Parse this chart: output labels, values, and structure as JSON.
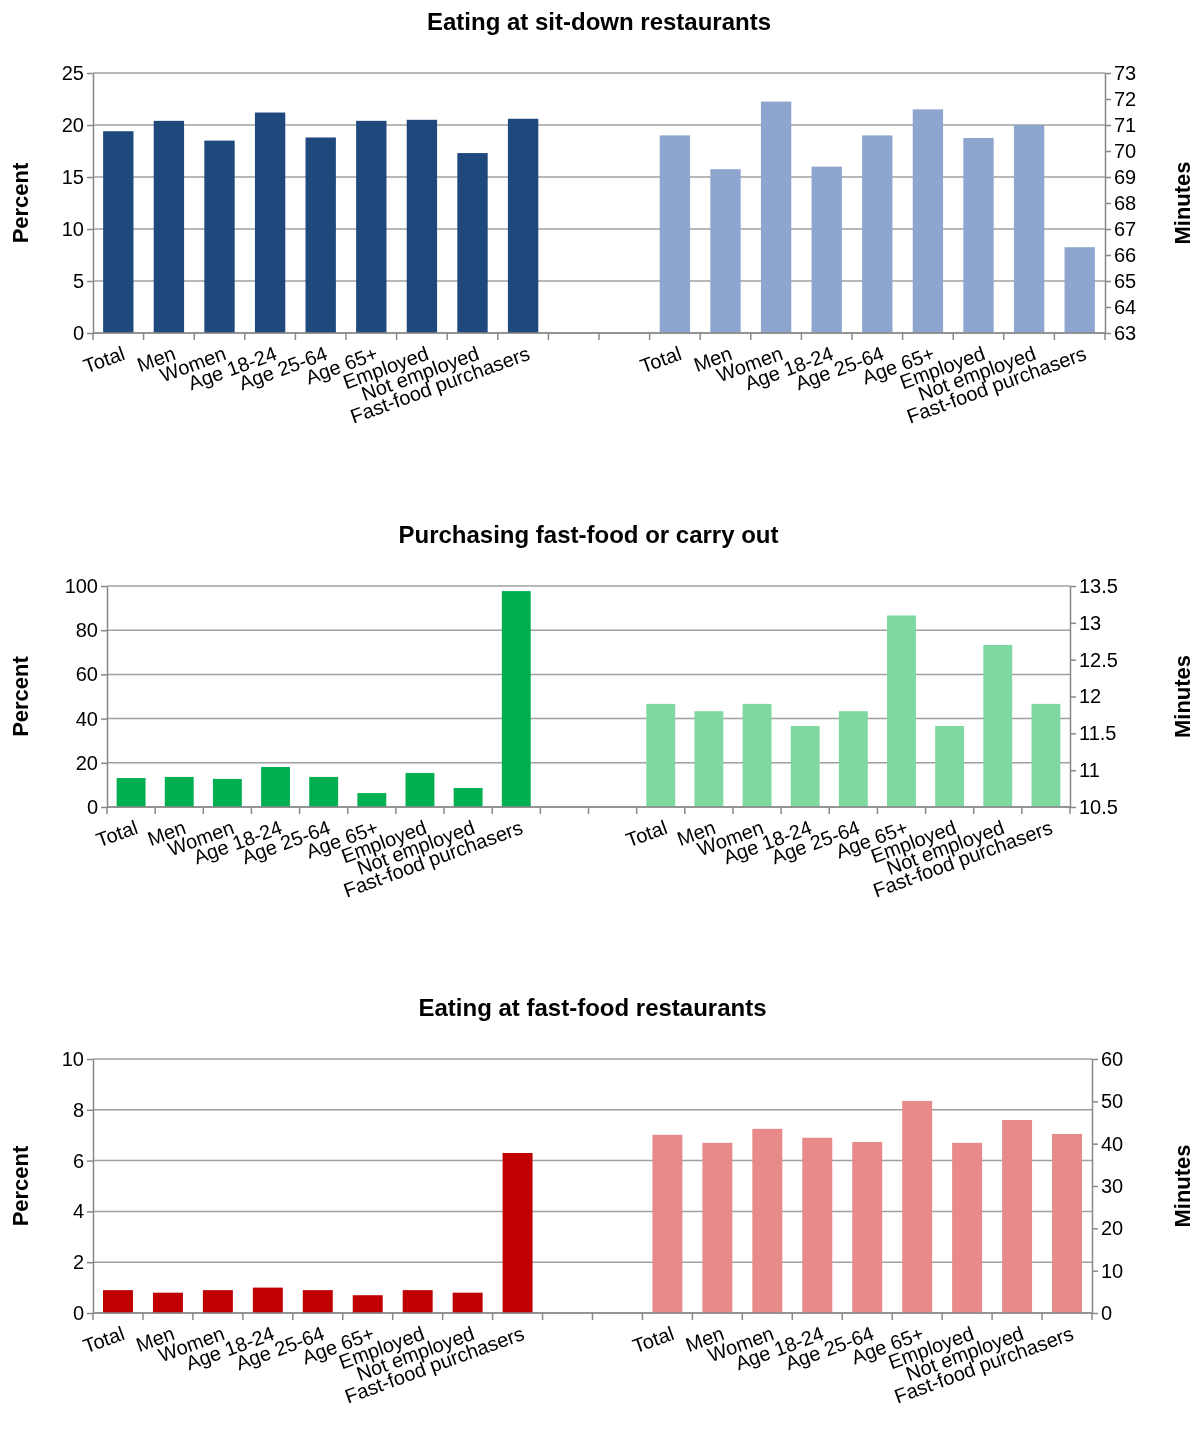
{
  "chart_data": [
    {
      "type": "bar",
      "title": "Eating at sit-down restaurants",
      "ylabel": "Percent",
      "y2label": "Minutes",
      "categories": [
        "Total",
        "Men",
        "Women",
        "Age 18-24",
        "Age 25-64",
        "Age 65+",
        "Employed",
        "Not employed",
        "Fast-food purchasers",
        null,
        null,
        "Total",
        "Men",
        "Women",
        "Age 18-24",
        "Age 25-64",
        "Age 65+",
        "Employed",
        "Not employed",
        "Fast-food purchasers"
      ],
      "series": [
        {
          "color": "#1f497d",
          "values": [
            19.4,
            20.4,
            18.5,
            21.2,
            18.8,
            20.4,
            20.5,
            17.3,
            20.6,
            null,
            null,
            null,
            null,
            null,
            null,
            null,
            null,
            null,
            null,
            null
          ]
        },
        {
          "color": "#8ea6cf",
          "axis": "y2",
          "values": [
            null,
            null,
            null,
            null,
            null,
            null,
            null,
            null,
            null,
            null,
            null,
            70.6,
            69.3,
            71.9,
            69.4,
            70.6,
            71.6,
            70.5,
            71.0,
            66.3
          ]
        }
      ],
      "ylim": [
        0,
        25
      ],
      "yticks": [
        0,
        5,
        10,
        15,
        20,
        25
      ],
      "y2lim": [
        63,
        73
      ],
      "y2ticks": [
        63,
        64,
        65,
        66,
        67,
        68,
        69,
        70,
        71,
        72,
        73
      ],
      "grid": "y"
    },
    {
      "type": "bar",
      "title": "Purchasing fast-food or carry out",
      "ylabel": "Percent",
      "y2label": "Minutes",
      "categories": [
        "Total",
        "Men",
        "Women",
        "Age 18-24",
        "Age 25-64",
        "Age 65+",
        "Employed",
        "Not employed",
        "Fast-food purchasers",
        null,
        null,
        "Total",
        "Men",
        "Women",
        "Age 18-24",
        "Age 25-64",
        "Age 65+",
        "Employed",
        "Not employed",
        "Fast-food purchasers"
      ],
      "series": [
        {
          "color": "#00b050",
          "values": [
            13.1,
            13.6,
            12.7,
            18.1,
            13.6,
            6.3,
            15.4,
            8.6,
            97.7,
            null,
            null,
            null,
            null,
            null,
            null,
            null,
            null,
            null,
            null,
            null
          ]
        },
        {
          "color": "#7fd8a0",
          "axis": "y2",
          "values": [
            null,
            null,
            null,
            null,
            null,
            null,
            null,
            null,
            null,
            null,
            null,
            11.9,
            11.8,
            11.9,
            11.6,
            11.8,
            13.1,
            11.6,
            12.7,
            11.9
          ]
        }
      ],
      "ylim": [
        0,
        100
      ],
      "yticks": [
        0,
        20,
        40,
        60,
        80,
        100
      ],
      "y2lim": [
        10.5,
        13.5
      ],
      "y2ticks": [
        10.5,
        11,
        11.5,
        12,
        12.5,
        13,
        13.5
      ],
      "grid": "y"
    },
    {
      "type": "bar",
      "title": "Eating at fast-food restaurants",
      "ylabel": "Percent",
      "y2label": "Minutes",
      "categories": [
        "Total",
        "Men",
        "Women",
        "Age 18-24",
        "Age 25-64",
        "Age 65+",
        "Employed",
        "Not employed",
        "Fast-food purchasers",
        null,
        null,
        "Total",
        "Men",
        "Women",
        "Age 18-24",
        "Age 25-64",
        "Age 65+",
        "Employed",
        "Not employed",
        "Fast-food purchasers"
      ],
      "series": [
        {
          "color": "#c00000",
          "values": [
            0.9,
            0.8,
            0.9,
            1.0,
            0.9,
            0.7,
            0.9,
            0.8,
            6.3,
            null,
            null,
            null,
            null,
            null,
            null,
            null,
            null,
            null,
            null,
            null
          ]
        },
        {
          "color": "#e88a8a",
          "axis": "y2",
          "values": [
            null,
            null,
            null,
            null,
            null,
            null,
            null,
            null,
            null,
            null,
            null,
            42.1,
            40.2,
            43.5,
            41.4,
            40.4,
            50.1,
            40.2,
            45.6,
            42.3
          ]
        }
      ],
      "ylim": [
        0,
        10
      ],
      "yticks": [
        0,
        2,
        4,
        6,
        8,
        10
      ],
      "y2lim": [
        0,
        60
      ],
      "y2ticks": [
        0,
        10,
        20,
        30,
        40,
        50,
        60
      ],
      "grid": "y"
    }
  ]
}
